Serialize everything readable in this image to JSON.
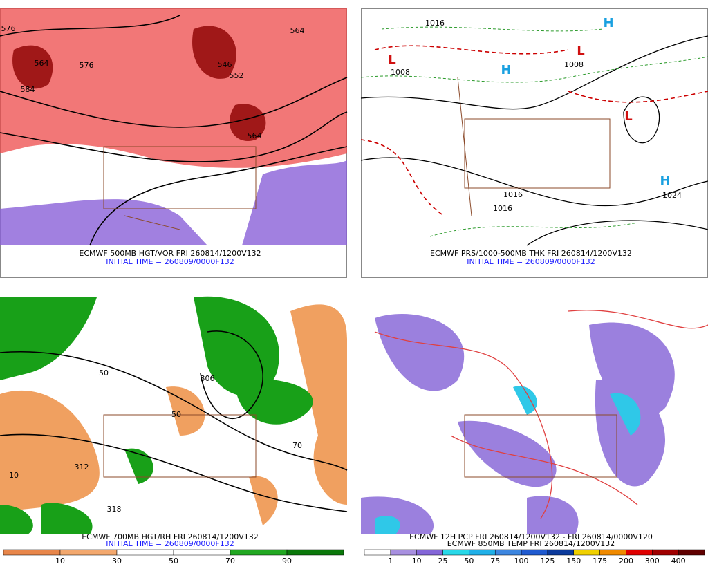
{
  "panels": [
    {
      "caption": "ECMWF 500MB HGT/VOR FRI 260814/1200V132",
      "initial": "INITIAL TIME = 260809/0000F132",
      "labels": [
        "564",
        "576",
        "584",
        "546",
        "552",
        "564",
        "564",
        "576"
      ]
    },
    {
      "caption": "ECMWF PRS/1000-500MB THK FRI 260814/1200V132",
      "initial": "INITIAL TIME = 260809/0000F132",
      "labels": [
        "L",
        "L",
        "L",
        "H",
        "H",
        "H",
        "1008",
        "1016",
        "1008",
        "1016",
        "1024",
        "1016"
      ]
    },
    {
      "caption": "ECMWF 700MB HGT/RH FRI 260814/1200V132",
      "initial": "INITIAL TIME = 260809/0000F132",
      "labels": [
        "306",
        "312",
        "318",
        "50",
        "50",
        "70",
        "10"
      ],
      "colorbar": {
        "colors": [
          "#e8864a",
          "#f3a86e",
          "#ffffff",
          "#ffffff",
          "#22a822",
          "#0a780a"
        ],
        "ticks": [
          10,
          30,
          50,
          70,
          90
        ]
      }
    },
    {
      "caption": "ECMWF 12H PCP FRI 260814/1200V132 - FRI 260814/0000V120",
      "initial": "ECMWF 850MB TEMP FRI 260814/1200V132",
      "colorbar": {
        "colors": [
          "#ffffff",
          "#a890e0",
          "#8466d8",
          "#28d8e8",
          "#20b0e8",
          "#3d86e0",
          "#1f5ad0",
          "#0b3a9c",
          "#f0d000",
          "#f08a00",
          "#e00000",
          "#a00000",
          "#600000"
        ],
        "ticks": [
          1,
          10,
          25,
          50,
          75,
          100,
          125,
          150,
          175,
          200,
          300,
          400
        ]
      }
    }
  ]
}
